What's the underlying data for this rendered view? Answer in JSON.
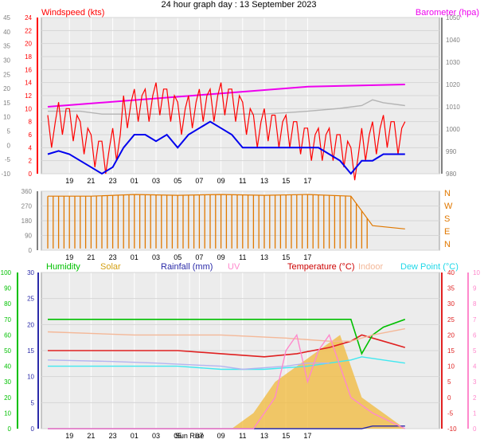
{
  "header": {
    "title": "24 hour graph day : 13 September 2023"
  },
  "colors": {
    "wind": "#ff0000",
    "wind_avg": "#0000ee",
    "wind_dir": "#e07800",
    "barometer": "#ee00ee",
    "barometer_fine": "#b4b4b4",
    "humidity": "#00c000",
    "solar": "#f2b93a",
    "uv": "#ff88cc",
    "rainfall": "#2a2aa8",
    "temperature": "#e02020",
    "indoor": "#f4b898",
    "dew_point": "#40e8f0",
    "axis_grey": "#808080"
  },
  "chart_data": [
    {
      "type": "line",
      "title": "",
      "labels": {
        "left": "Windspeed (kts)",
        "right": "Barometer (hpa)"
      },
      "x_ticks": [
        "19",
        "21",
        "23",
        "01",
        "03",
        "05",
        "07",
        "09",
        "11",
        "13",
        "15",
        "17"
      ],
      "x_hours": [
        "18:00",
        "10:00"
      ],
      "ylim_left": [
        0,
        24
      ],
      "y_ticks_left": [
        0,
        2,
        4,
        6,
        8,
        10,
        12,
        14,
        16,
        18,
        20,
        22,
        24
      ],
      "y_ticks_outer": [
        -10,
        -5,
        0,
        5,
        10,
        15,
        20,
        25,
        30,
        35,
        40,
        45
      ],
      "ylim_right": [
        980,
        1050
      ],
      "y_ticks_right": [
        980,
        990,
        1000,
        1010,
        1020,
        1030,
        1040,
        1050
      ],
      "series": [
        {
          "name": "Windspeed (kts)",
          "axis": "left",
          "style": "gust",
          "points": [
            [
              0,
              6
            ],
            [
              1,
              8
            ],
            [
              2,
              7
            ],
            [
              3,
              5
            ],
            [
              4,
              3
            ],
            [
              5,
              2
            ],
            [
              6,
              4
            ],
            [
              7,
              9
            ],
            [
              8,
              10
            ],
            [
              9,
              10
            ],
            [
              10,
              11
            ],
            [
              11,
              10
            ],
            [
              12,
              8
            ],
            [
              13,
              9
            ],
            [
              14,
              10
            ],
            [
              15,
              10
            ],
            [
              16,
              11
            ],
            [
              17,
              10
            ],
            [
              18,
              8
            ],
            [
              19,
              6
            ],
            [
              20,
              7
            ],
            [
              21,
              6
            ],
            [
              22,
              6
            ],
            [
              23,
              5
            ],
            [
              24,
              4
            ],
            [
              25,
              4
            ],
            [
              26,
              4
            ],
            [
              27,
              3
            ],
            [
              28,
              1
            ],
            [
              29,
              4
            ],
            [
              30,
              5
            ],
            [
              31,
              6
            ],
            [
              32,
              5
            ],
            [
              33,
              5
            ]
          ]
        },
        {
          "name": "Windspeed avg",
          "axis": "left",
          "points": [
            [
              0,
              3
            ],
            [
              1,
              3.5
            ],
            [
              2,
              3
            ],
            [
              3,
              2
            ],
            [
              4,
              1
            ],
            [
              5,
              0
            ],
            [
              6,
              1
            ],
            [
              7,
              4
            ],
            [
              8,
              6
            ],
            [
              9,
              6
            ],
            [
              10,
              5
            ],
            [
              11,
              6
            ],
            [
              12,
              4
            ],
            [
              13,
              6
            ],
            [
              14,
              7
            ],
            [
              15,
              8
            ],
            [
              16,
              7
            ],
            [
              17,
              6
            ],
            [
              18,
              4
            ],
            [
              19,
              4
            ],
            [
              20,
              4
            ],
            [
              21,
              4
            ],
            [
              22,
              4
            ],
            [
              23,
              4
            ],
            [
              24,
              4
            ],
            [
              25,
              4
            ],
            [
              26,
              3
            ],
            [
              27,
              2
            ],
            [
              28,
              0
            ],
            [
              29,
              2
            ],
            [
              30,
              2
            ],
            [
              31,
              3
            ],
            [
              32,
              3
            ],
            [
              33,
              3
            ]
          ]
        },
        {
          "name": "Barometer (hpa)",
          "axis": "right",
          "points": [
            [
              0,
              1010
            ],
            [
              8,
              1013
            ],
            [
              16,
              1016
            ],
            [
              24,
              1019
            ],
            [
              33,
              1020
            ]
          ]
        },
        {
          "name": "Barometer detail",
          "axis": "outer",
          "points": [
            [
              0,
              12
            ],
            [
              3,
              12
            ],
            [
              5,
              11
            ],
            [
              8,
              11
            ],
            [
              12,
              11
            ],
            [
              16,
              11
            ],
            [
              20,
              11
            ],
            [
              24,
              12
            ],
            [
              27,
              13
            ],
            [
              29,
              14
            ],
            [
              30,
              16
            ],
            [
              31,
              15
            ],
            [
              33,
              14
            ]
          ]
        }
      ]
    },
    {
      "type": "line",
      "title": "",
      "labels": {
        "right": [
          "N",
          "W",
          "S",
          "E",
          "N"
        ]
      },
      "x_ticks": [
        "19",
        "21",
        "23",
        "01",
        "03",
        "05",
        "07",
        "09",
        "11",
        "13",
        "15",
        "17"
      ],
      "ylim": [
        0,
        360
      ],
      "y_ticks": [
        0,
        90,
        180,
        270,
        360
      ],
      "series": [
        {
          "name": "Wind direction",
          "style": "bars",
          "points": [
            [
              0,
              330
            ],
            [
              4,
              330
            ],
            [
              8,
              340
            ],
            [
              12,
              335
            ],
            [
              16,
              340
            ],
            [
              20,
              335
            ],
            [
              24,
              340
            ],
            [
              28,
              330
            ],
            [
              30,
              150
            ],
            [
              33,
              130
            ]
          ]
        }
      ]
    },
    {
      "type": "line",
      "title": "",
      "labels": {
        "humidity": "Humidity",
        "solar": "Solar",
        "rainfall": "Rainfall (mm)",
        "uv": "UV",
        "temperature": "Temperature (°C)",
        "indoor": "Indoor",
        "dew_point": "Dew Point (°C)"
      },
      "x_ticks": [
        "19",
        "21",
        "23",
        "01",
        "03",
        "05",
        "Sun Rise",
        "07",
        "09",
        "11",
        "13",
        "15",
        "17"
      ],
      "ylim_green": [
        0,
        100
      ],
      "y_ticks_green": [
        0,
        10,
        20,
        30,
        40,
        50,
        60,
        70,
        80,
        90,
        100
      ],
      "ylim_blue": [
        0,
        30
      ],
      "y_ticks_blue": [
        0,
        5,
        10,
        15,
        20,
        25,
        30
      ],
      "ylim_red": [
        -10,
        40
      ],
      "y_ticks_red": [
        -10,
        -5,
        0,
        5,
        10,
        15,
        20,
        25,
        30,
        35,
        40
      ],
      "ylim_pink": [
        0,
        10
      ],
      "y_ticks_pink": [
        0,
        1,
        2,
        3,
        4,
        5,
        6,
        7,
        8,
        9,
        10
      ],
      "series": [
        {
          "name": "Temperature (°C)",
          "axis": "red",
          "points": [
            [
              0,
              15
            ],
            [
              4,
              15
            ],
            [
              8,
              15
            ],
            [
              12,
              15
            ],
            [
              16,
              14
            ],
            [
              20,
              13
            ],
            [
              23,
              14
            ],
            [
              26,
              16
            ],
            [
              28,
              18
            ],
            [
              29,
              20
            ],
            [
              31,
              18
            ],
            [
              33,
              16
            ]
          ]
        },
        {
          "name": "Dew Point (°C)",
          "axis": "red",
          "points": [
            [
              0,
              10
            ],
            [
              4,
              10
            ],
            [
              8,
              10
            ],
            [
              12,
              10
            ],
            [
              16,
              9
            ],
            [
              20,
              9
            ],
            [
              24,
              10
            ],
            [
              26,
              11
            ],
            [
              28,
              12
            ],
            [
              29,
              13
            ],
            [
              31,
              12
            ],
            [
              33,
              11
            ]
          ]
        },
        {
          "name": "Humidity",
          "axis": "green",
          "points": [
            [
              0,
              70
            ],
            [
              8,
              70
            ],
            [
              16,
              70
            ],
            [
              24,
              70
            ],
            [
              28,
              70
            ],
            [
              29,
              48
            ],
            [
              30,
              60
            ],
            [
              31,
              65
            ],
            [
              33,
              70
            ]
          ]
        },
        {
          "name": "Indoor",
          "axis": "red",
          "points": [
            [
              0,
              21
            ],
            [
              8,
              20
            ],
            [
              16,
              20
            ],
            [
              22,
              19
            ],
            [
              26,
              18
            ],
            [
              28,
              18
            ],
            [
              30,
              20
            ],
            [
              33,
              22
            ]
          ]
        },
        {
          "name": "Humidity (indoor)",
          "axis": "green",
          "points": [
            [
              0,
              44
            ],
            [
              6,
              43
            ],
            [
              10,
              42
            ],
            [
              16,
              40
            ],
            [
              18,
              38
            ],
            [
              22,
              40
            ],
            [
              24,
              42
            ],
            [
              26,
              42
            ]
          ]
        },
        {
          "name": "Rainfall (mm)",
          "axis": "blue",
          "points": [
            [
              0,
              0
            ],
            [
              16,
              0
            ],
            [
              29,
              0
            ],
            [
              30,
              0.5
            ],
            [
              33,
              0.5
            ]
          ]
        },
        {
          "name": "Solar",
          "axis": "pink",
          "style": "area",
          "points": [
            [
              0,
              0
            ],
            [
              17,
              0
            ],
            [
              19,
              1
            ],
            [
              21,
              3
            ],
            [
              23,
              4
            ],
            [
              25,
              5
            ],
            [
              27,
              6
            ],
            [
              28,
              4
            ],
            [
              29,
              2
            ],
            [
              31,
              1
            ],
            [
              33,
              0
            ]
          ]
        },
        {
          "name": "UV",
          "axis": "pink",
          "points": [
            [
              0,
              0
            ],
            [
              19,
              0
            ],
            [
              21,
              2
            ],
            [
              22,
              5
            ],
            [
              23,
              6
            ],
            [
              24,
              3
            ],
            [
              25,
              5
            ],
            [
              26,
              6
            ],
            [
              27,
              4
            ],
            [
              28,
              2
            ],
            [
              30,
              1
            ],
            [
              33,
              0
            ]
          ]
        }
      ]
    }
  ]
}
